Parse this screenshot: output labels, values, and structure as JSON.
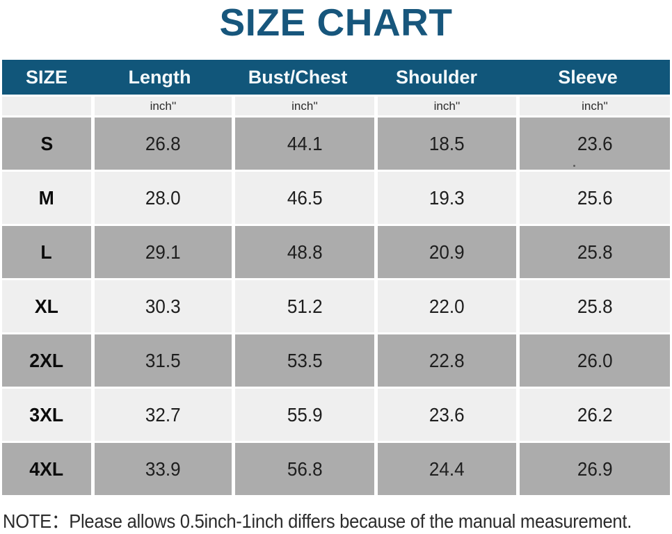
{
  "title": "SIZE CHART",
  "colors": {
    "title_blue": "#17567C",
    "header_bg": "#11567A",
    "header_text": "#F4F9FB",
    "row_gray": "#ACACAC",
    "row_light": "#EFEFEF",
    "cell_text": "#1E1E1E",
    "note_text": "#2B2B2B"
  },
  "table": {
    "columns": [
      "SIZE",
      "Length",
      "Bust/Chest",
      "Shoulder",
      "Sleeve"
    ],
    "unit_row": [
      "",
      "inch''",
      "inch''",
      "inch''",
      "inch''"
    ],
    "rows": [
      {
        "size": "S",
        "values": [
          "26.8",
          "44.1",
          "18.5",
          "23.6"
        ]
      },
      {
        "size": "M",
        "values": [
          "28.0",
          "46.5",
          "19.3",
          "25.6"
        ]
      },
      {
        "size": "L",
        "values": [
          "29.1",
          "48.8",
          "20.9",
          "25.8"
        ]
      },
      {
        "size": "XL",
        "values": [
          "30.3",
          "51.2",
          "22.0",
          "25.8"
        ]
      },
      {
        "size": "2XL",
        "values": [
          "31.5",
          "53.5",
          "22.8",
          "26.0"
        ]
      },
      {
        "size": "3XL",
        "values": [
          "32.7",
          "55.9",
          "23.6",
          "26.2"
        ]
      },
      {
        "size": "4XL",
        "values": [
          "33.9",
          "56.8",
          "24.4",
          "26.9"
        ]
      }
    ]
  },
  "note": "NOTE：Please allows 0.5inch-1inch differs because of the manual measurement.",
  "chart_data": {
    "type": "table",
    "title": "SIZE CHART",
    "columns": [
      "SIZE",
      "Length",
      "Bust/Chest",
      "Shoulder",
      "Sleeve"
    ],
    "unit": "inch''",
    "rows": [
      [
        "S",
        26.8,
        44.1,
        18.5,
        23.6
      ],
      [
        "M",
        28.0,
        46.5,
        19.3,
        25.6
      ],
      [
        "L",
        29.1,
        48.8,
        20.9,
        25.8
      ],
      [
        "XL",
        30.3,
        51.2,
        22.0,
        25.8
      ],
      [
        "2XL",
        31.5,
        53.5,
        22.8,
        26.0
      ],
      [
        "3XL",
        32.7,
        55.9,
        23.6,
        26.2
      ],
      [
        "4XL",
        33.9,
        56.8,
        24.4,
        26.9
      ]
    ],
    "note": "NOTE：Please allows 0.5inch-1inch differs because of the manual measurement.",
    "layout": {
      "striped": true,
      "stripe_colors": [
        "#ACACAC",
        "#EFEFEF"
      ],
      "header_bg": "#11567A"
    }
  }
}
